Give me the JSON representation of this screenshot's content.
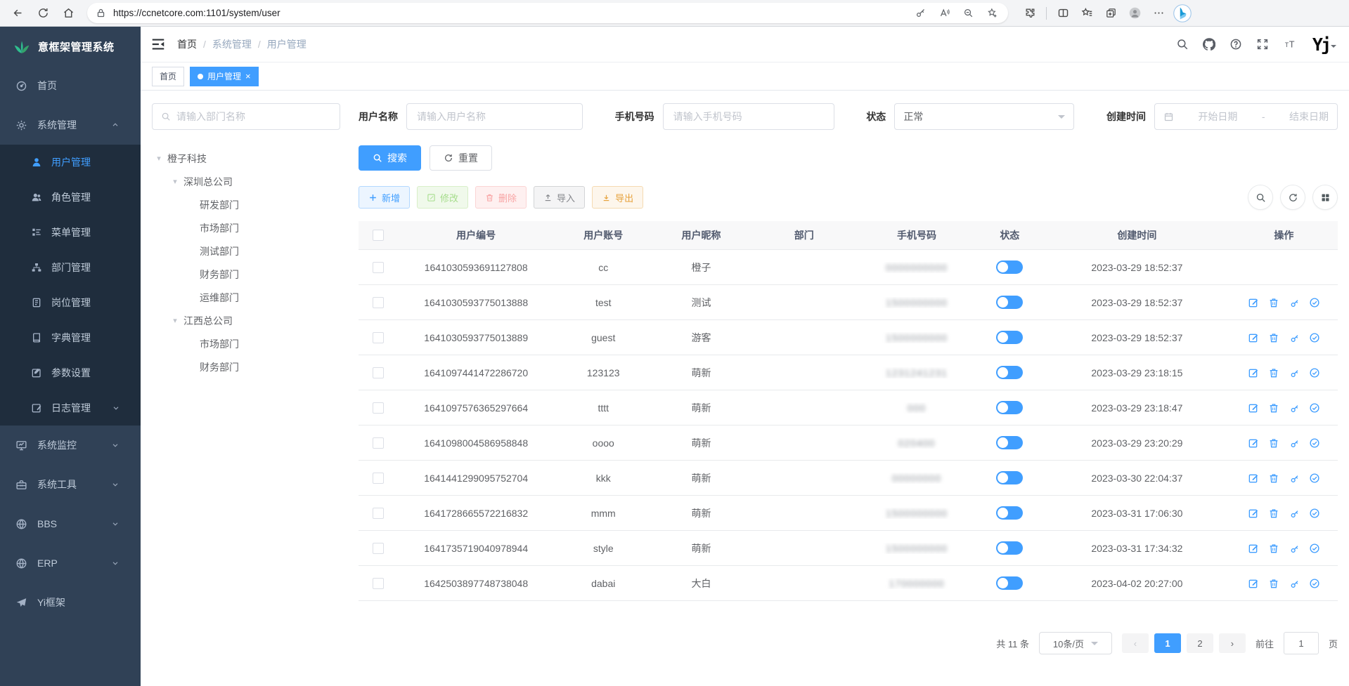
{
  "browser": {
    "url": "https://ccnetcore.com:1101/system/user"
  },
  "app_title": "意框架管理系统",
  "sidebar": {
    "menu": [
      {
        "icon": "dashboard",
        "label": "首页"
      },
      {
        "icon": "gear",
        "label": "系统管理",
        "expanded": true,
        "children": [
          {
            "icon": "user",
            "label": "用户管理",
            "active": true
          },
          {
            "icon": "users",
            "label": "角色管理"
          },
          {
            "icon": "menutree",
            "label": "菜单管理"
          },
          {
            "icon": "org",
            "label": "部门管理"
          },
          {
            "icon": "post",
            "label": "岗位管理"
          },
          {
            "icon": "dict",
            "label": "字典管理"
          },
          {
            "icon": "param",
            "label": "参数设置"
          },
          {
            "icon": "log",
            "label": "日志管理",
            "chevron": true
          }
        ]
      },
      {
        "icon": "monitor",
        "label": "系统监控",
        "chevron": true
      },
      {
        "icon": "toolbox",
        "label": "系统工具",
        "chevron": true
      },
      {
        "icon": "globe",
        "label": "BBS",
        "chevron": true
      },
      {
        "icon": "globe",
        "label": "ERP",
        "chevron": true
      },
      {
        "icon": "plane",
        "label": "Yi框架"
      }
    ]
  },
  "breadcrumb": [
    "首页",
    "系统管理",
    "用户管理"
  ],
  "tabs": [
    {
      "label": "首页",
      "active": false,
      "closable": false
    },
    {
      "label": "用户管理",
      "active": true,
      "closable": true
    }
  ],
  "filters": {
    "dept_placeholder": "请输入部门名称",
    "username_label": "用户名称",
    "username_placeholder": "请输入用户名称",
    "phone_label": "手机号码",
    "phone_placeholder": "请输入手机号码",
    "status_label": "状态",
    "status_value": "正常",
    "created_label": "创建时间",
    "date_start_placeholder": "开始日期",
    "date_separator": "-",
    "date_end_placeholder": "结束日期",
    "search_button": "搜索",
    "reset_button": "重置"
  },
  "tree": [
    {
      "label": "橙子科技",
      "depth": 0,
      "expandable": true
    },
    {
      "label": "深圳总公司",
      "depth": 1,
      "expandable": true
    },
    {
      "label": "研发部门",
      "depth": 2
    },
    {
      "label": "市场部门",
      "depth": 2
    },
    {
      "label": "测试部门",
      "depth": 2
    },
    {
      "label": "财务部门",
      "depth": 2
    },
    {
      "label": "运维部门",
      "depth": 2
    },
    {
      "label": "江西总公司",
      "depth": 1,
      "expandable": true
    },
    {
      "label": "市场部门",
      "depth": 2
    },
    {
      "label": "财务部门",
      "depth": 2
    }
  ],
  "toolbar": {
    "add": "新增",
    "edit": "修改",
    "delete": "删除",
    "import": "导入",
    "export": "导出"
  },
  "table": {
    "columns": [
      "用户编号",
      "用户账号",
      "用户昵称",
      "部门",
      "手机号码",
      "状态",
      "创建时间",
      "操作"
    ],
    "rows": [
      {
        "id": "1641030593691127808",
        "account": "cc",
        "nickname": "橙子",
        "dept": "",
        "phone_masked": "0000000000",
        "status_on": true,
        "created": "2023-03-29 18:52:37",
        "actions": false
      },
      {
        "id": "1641030593775013888",
        "account": "test",
        "nickname": "测试",
        "dept": "",
        "phone_masked": "1500000000",
        "status_on": true,
        "created": "2023-03-29 18:52:37",
        "actions": true
      },
      {
        "id": "1641030593775013889",
        "account": "guest",
        "nickname": "游客",
        "dept": "",
        "phone_masked": "1500000000",
        "status_on": true,
        "created": "2023-03-29 18:52:37",
        "actions": true
      },
      {
        "id": "1641097441472286720",
        "account": "123123",
        "nickname": "萌新",
        "dept": "",
        "phone_masked": "1231241231",
        "status_on": true,
        "created": "2023-03-29 23:18:15",
        "actions": true
      },
      {
        "id": "1641097576365297664",
        "account": "tttt",
        "nickname": "萌新",
        "dept": "",
        "phone_masked": "000",
        "status_on": true,
        "created": "2023-03-29 23:18:47",
        "actions": true
      },
      {
        "id": "1641098004586958848",
        "account": "oooo",
        "nickname": "萌新",
        "dept": "",
        "phone_masked": "020400",
        "status_on": true,
        "created": "2023-03-29 23:20:29",
        "actions": true
      },
      {
        "id": "1641441299095752704",
        "account": "kkk",
        "nickname": "萌新",
        "dept": "",
        "phone_masked": "00000000",
        "status_on": true,
        "created": "2023-03-30 22:04:37",
        "actions": true
      },
      {
        "id": "1641728665572216832",
        "account": "mmm",
        "nickname": "萌新",
        "dept": "",
        "phone_masked": "1500000000",
        "status_on": true,
        "created": "2023-03-31 17:06:30",
        "actions": true
      },
      {
        "id": "1641735719040978944",
        "account": "style",
        "nickname": "萌新",
        "dept": "",
        "phone_masked": "1500000000",
        "status_on": true,
        "created": "2023-03-31 17:34:32",
        "actions": true
      },
      {
        "id": "1642503897748738048",
        "account": "dabai",
        "nickname": "大白",
        "dept": "",
        "phone_masked": "170000000",
        "status_on": true,
        "created": "2023-04-02 20:27:00",
        "actions": true
      }
    ]
  },
  "pagination": {
    "total_text": "共 11 条",
    "page_size": "10条/页",
    "pages": [
      "1",
      "2"
    ],
    "active_page": "1",
    "goto_label": "前往",
    "goto_value": "1",
    "goto_suffix": "页"
  },
  "colors": {
    "accent": "#409eff",
    "sidebar_bg": "#304156",
    "submenu_bg": "#1f2d3d",
    "success": "#67c23a",
    "danger": "#f56c6c",
    "warning": "#e6a23c",
    "info": "#909399"
  }
}
